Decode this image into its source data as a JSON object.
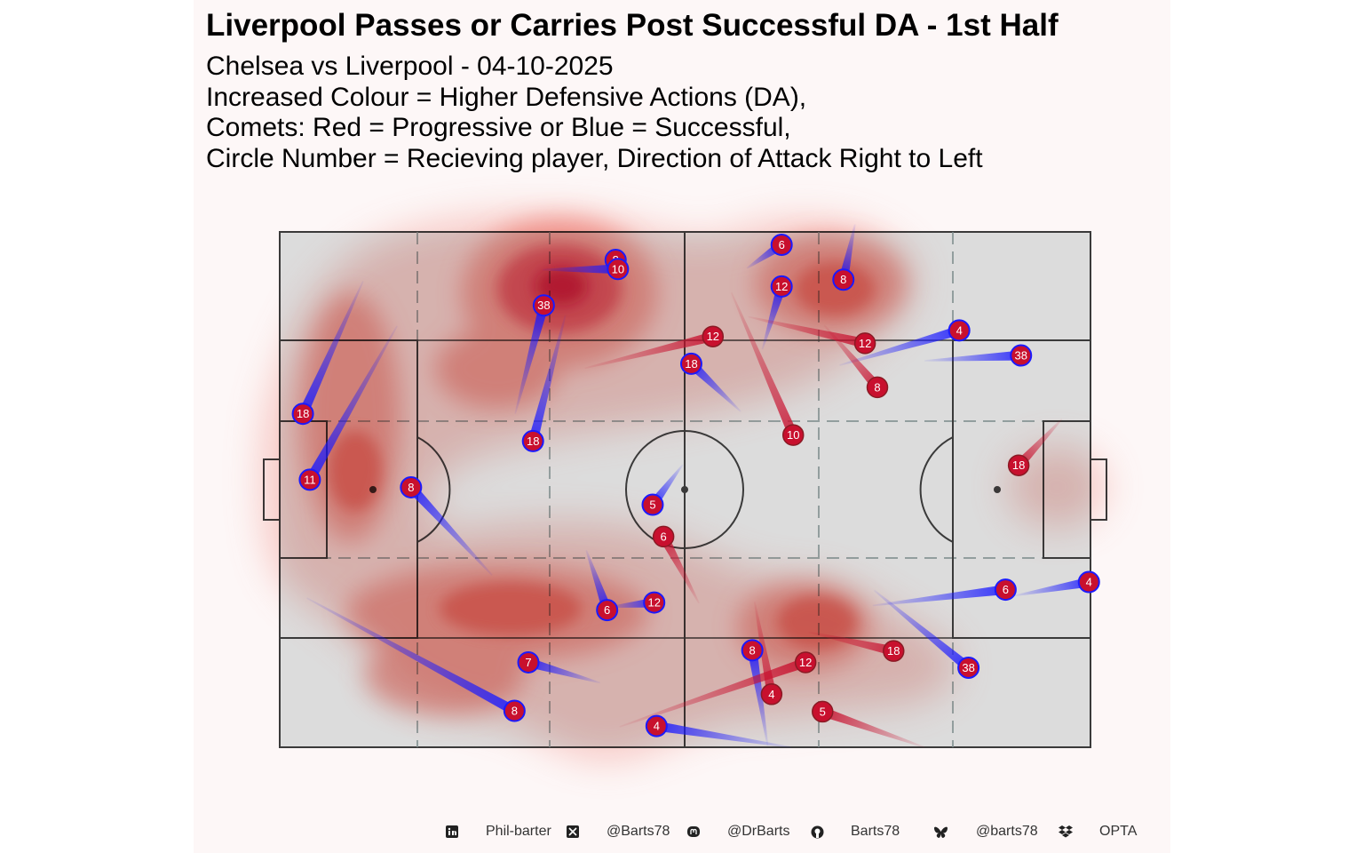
{
  "title": "Liverpool Passes or Carries Post Successful DA - 1st Half",
  "subtitle_lines": [
    "Chelsea vs Liverpool - 04-10-2025",
    "Increased Colour = Higher Defensive Actions (DA),",
    "Comets: Red = Progressive or Blue = Successful,",
    "Circle Number = Recieving player, Direction of Attack Right to Left"
  ],
  "colors": {
    "progressive": "#c8102e",
    "successful": "#1a1aff",
    "density": "#e8443a",
    "pitch": "#dcdcdc",
    "lines": "#3a3a3a",
    "background": "#fdf7f7"
  },
  "footer": [
    {
      "icon": "linkedin-icon",
      "text": "Phil-barter"
    },
    {
      "icon": "x-twitter-icon",
      "text": "@Barts78"
    },
    {
      "icon": "mastodon-icon",
      "text": "@DrBarts"
    },
    {
      "icon": "github-icon",
      "text": "Barts78"
    },
    {
      "icon": "bluesky-icon",
      "text": "@barts78"
    },
    {
      "icon": "dropbox-icon",
      "text": "OPTA"
    }
  ],
  "chart_data": {
    "type": "scatter",
    "pitch": {
      "length": 105,
      "width": 68,
      "grid": true,
      "attack_direction": "right to left"
    },
    "comets": [
      {
        "player": "8",
        "type": "successful",
        "start": [
          43.0,
          64.0
        ],
        "end": [
          43.5,
          64.3
        ]
      },
      {
        "player": "10",
        "type": "successful",
        "start": [
          34.0,
          63.0
        ],
        "end": [
          43.8,
          63.1
        ]
      },
      {
        "player": "38",
        "type": "successful",
        "start": [
          30.5,
          44.0
        ],
        "end": [
          34.2,
          58.3
        ]
      },
      {
        "player": "18",
        "type": "successful",
        "start": [
          37.0,
          57.0
        ],
        "end": [
          32.8,
          40.4
        ]
      },
      {
        "player": "18",
        "type": "successful",
        "start": [
          10.8,
          61.5
        ],
        "end": [
          3.0,
          44.0
        ]
      },
      {
        "player": "11",
        "type": "successful",
        "start": [
          15.2,
          55.6
        ],
        "end": [
          3.9,
          35.3
        ]
      },
      {
        "player": "8",
        "type": "successful",
        "start": [
          27.5,
          22.7
        ],
        "end": [
          17.0,
          34.3
        ]
      },
      {
        "player": "5",
        "type": "successful",
        "start": [
          52.2,
          37.3
        ],
        "end": [
          48.3,
          32.0
        ]
      },
      {
        "player": "6",
        "type": "successful",
        "start": [
          39.7,
          26.0
        ],
        "end": [
          42.4,
          18.1
        ]
      },
      {
        "player": "12",
        "type": "successful",
        "start": [
          42.7,
          18.5
        ],
        "end": [
          48.5,
          19.1
        ]
      },
      {
        "player": "7",
        "type": "successful",
        "start": [
          41.5,
          8.5
        ],
        "end": [
          32.2,
          11.2
        ]
      },
      {
        "player": "8",
        "type": "successful",
        "start": [
          3.5,
          19.7
        ],
        "end": [
          30.4,
          4.8
        ]
      },
      {
        "player": "4",
        "type": "successful",
        "start": [
          66.2,
          0.0
        ],
        "end": [
          48.8,
          2.8
        ]
      },
      {
        "player": "8",
        "type": "successful",
        "start": [
          63.2,
          0.2
        ],
        "end": [
          61.2,
          12.8
        ]
      },
      {
        "player": "18",
        "type": "successful",
        "start": [
          59.7,
          44.3
        ],
        "end": [
          53.3,
          50.6
        ]
      },
      {
        "player": "6",
        "type": "successful",
        "start": [
          60.5,
          63.2
        ],
        "end": [
          65.0,
          66.3
        ]
      },
      {
        "player": "12",
        "type": "successful",
        "start": [
          62.5,
          52.5
        ],
        "end": [
          65.0,
          60.8
        ]
      },
      {
        "player": "8",
        "type": "successful",
        "start": [
          74.5,
          69.0
        ],
        "end": [
          73.0,
          61.7
        ]
      },
      {
        "player": "4",
        "type": "successful",
        "start": [
          72.5,
          50.4
        ],
        "end": [
          88.0,
          55.0
        ]
      },
      {
        "player": "38",
        "type": "successful",
        "start": [
          83.5,
          51.0
        ],
        "end": [
          96.0,
          51.7
        ]
      },
      {
        "player": "6",
        "type": "successful",
        "start": [
          76.8,
          18.7
        ],
        "end": [
          94.0,
          20.8
        ]
      },
      {
        "player": "4",
        "type": "successful",
        "start": [
          95.2,
          20.0
        ],
        "end": [
          104.8,
          21.8
        ]
      },
      {
        "player": "38",
        "type": "successful",
        "start": [
          77.0,
          20.7
        ],
        "end": [
          89.2,
          10.5
        ]
      },
      {
        "player": "12",
        "type": "progressive",
        "start": [
          39.5,
          50.0
        ],
        "end": [
          56.1,
          54.2
        ]
      },
      {
        "player": "10",
        "type": "progressive",
        "start": [
          58.5,
          60.0
        ],
        "end": [
          66.5,
          41.2
        ]
      },
      {
        "player": "12",
        "type": "progressive",
        "start": [
          60.7,
          56.8
        ],
        "end": [
          75.8,
          53.3
        ]
      },
      {
        "player": "8",
        "type": "progressive",
        "start": [
          70.5,
          55.7
        ],
        "end": [
          77.4,
          47.5
        ]
      },
      {
        "player": "18",
        "type": "progressive",
        "start": [
          101.3,
          43.3
        ],
        "end": [
          95.7,
          37.2
        ]
      },
      {
        "player": "6",
        "type": "progressive",
        "start": [
          54.3,
          19.0
        ],
        "end": [
          49.7,
          27.8
        ]
      },
      {
        "player": "4",
        "type": "progressive",
        "start": [
          61.5,
          19.2
        ],
        "end": [
          63.7,
          7.0
        ]
      },
      {
        "player": "12",
        "type": "progressive",
        "start": [
          44.0,
          2.7
        ],
        "end": [
          68.1,
          11.2
        ]
      },
      {
        "player": "18",
        "type": "progressive",
        "start": [
          68.5,
          15.2
        ],
        "end": [
          79.5,
          12.7
        ]
      },
      {
        "player": "5",
        "type": "progressive",
        "start": [
          83.5,
          0.0
        ],
        "end": [
          70.3,
          4.7
        ]
      }
    ]
  }
}
